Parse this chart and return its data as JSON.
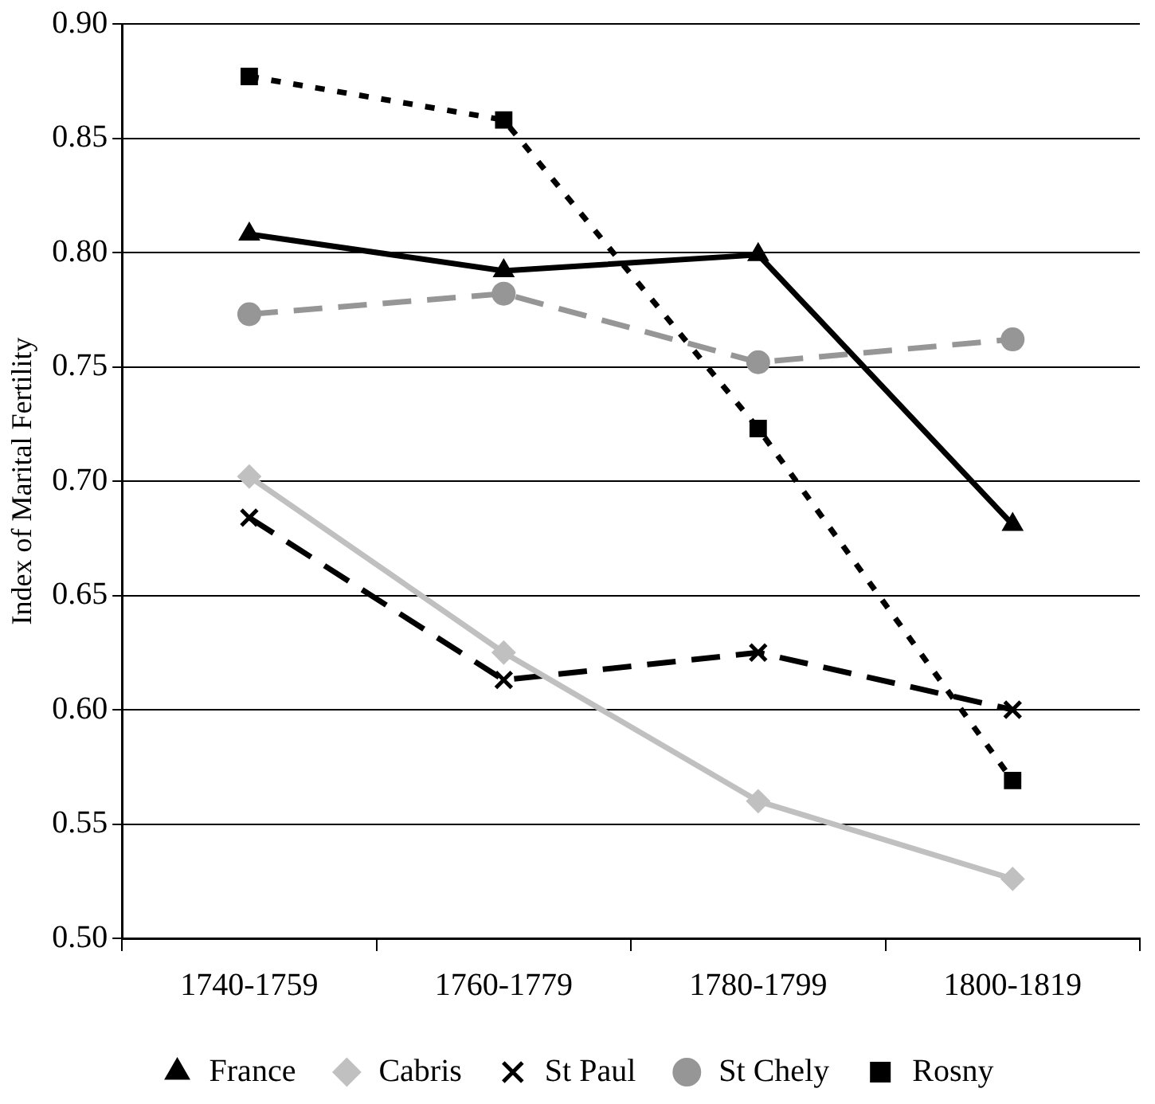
{
  "chart_data": {
    "type": "line",
    "ylabel": "Index of Marital Fertility",
    "categories": [
      "1740-1759",
      "1760-1779",
      "1780-1799",
      "1800-1819"
    ],
    "series": [
      {
        "name": "France",
        "color": "#000000",
        "marker": "triangle",
        "line_style": "solid",
        "values": [
          0.808,
          0.792,
          0.799,
          0.681
        ]
      },
      {
        "name": "Cabris",
        "color": "#c0c0c0",
        "marker": "diamond",
        "line_style": "solid",
        "values": [
          0.702,
          0.625,
          0.56,
          0.526
        ]
      },
      {
        "name": "St Paul",
        "color": "#000000",
        "marker": "cross",
        "line_style": "dashed",
        "values": [
          0.684,
          0.613,
          0.625,
          0.6
        ]
      },
      {
        "name": "St Chely",
        "color": "#969696",
        "marker": "circle",
        "line_style": "dashed",
        "values": [
          0.773,
          0.782,
          0.752,
          0.762
        ]
      },
      {
        "name": "Rosny",
        "color": "#000000",
        "marker": "square",
        "line_style": "dotted",
        "values": [
          0.877,
          0.858,
          0.723,
          0.569
        ]
      }
    ],
    "ylim": [
      0.5,
      0.9
    ],
    "yticks": [
      {
        "value": 0.5,
        "label": "0.50"
      },
      0.55,
      {
        "value": 0.6,
        "label": "0.60"
      },
      0.65,
      {
        "value": 0.7,
        "label": "0.70"
      },
      0.75,
      {
        "value": 0.8,
        "label": "0.80"
      },
      0.85,
      {
        "value": 0.9,
        "label": "0.90"
      }
    ],
    "grid": "y",
    "legend": "bottom"
  }
}
